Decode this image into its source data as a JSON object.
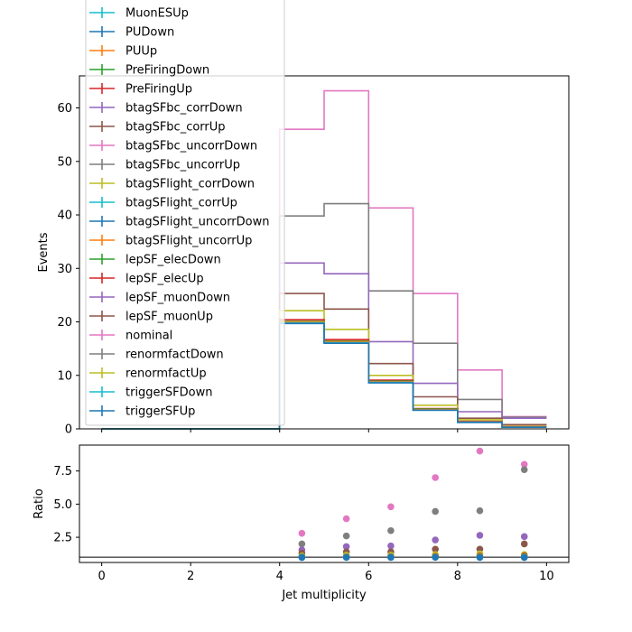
{
  "chart_data": [
    {
      "type": "line",
      "step": true,
      "xlabel": "",
      "ylabel": "Events",
      "xlim": [
        -0.5,
        10.5
      ],
      "ylim": [
        0,
        66
      ],
      "x_ticks": [
        0,
        2,
        4,
        6,
        8,
        10
      ],
      "y_ticks": [
        0,
        10,
        20,
        30,
        40,
        50,
        60
      ],
      "y_tick_labels": [
        "0",
        "10",
        "20",
        "30",
        "40",
        "50",
        "60"
      ],
      "bin_edges": [
        0,
        1,
        2,
        3,
        4,
        5,
        6,
        7,
        8,
        9,
        10
      ],
      "legend": {
        "placement": "upper left",
        "entries": [
          {
            "label": "MuonESUp",
            "color": "#17becf"
          },
          {
            "label": "PUDown",
            "color": "#1f77b4"
          },
          {
            "label": "PUUp",
            "color": "#ff7f0e"
          },
          {
            "label": "PreFiringDown",
            "color": "#2ca02c"
          },
          {
            "label": "PreFiringUp",
            "color": "#d62728"
          },
          {
            "label": "btagSFbc_corrDown",
            "color": "#9467bd"
          },
          {
            "label": "btagSFbc_corrUp",
            "color": "#8c564b"
          },
          {
            "label": "btagSFbc_uncorrDown",
            "color": "#e377c2"
          },
          {
            "label": "btagSFbc_uncorrUp",
            "color": "#7f7f7f"
          },
          {
            "label": "btagSFlight_corrDown",
            "color": "#bcbd22"
          },
          {
            "label": "btagSFlight_corrUp",
            "color": "#17becf"
          },
          {
            "label": "btagSFlight_uncorrDown",
            "color": "#1f77b4"
          },
          {
            "label": "btagSFlight_uncorrUp",
            "color": "#ff7f0e"
          },
          {
            "label": "lepSF_elecDown",
            "color": "#2ca02c"
          },
          {
            "label": "lepSF_elecUp",
            "color": "#d62728"
          },
          {
            "label": "lepSF_muonDown",
            "color": "#9467bd"
          },
          {
            "label": "lepSF_muonUp",
            "color": "#8c564b"
          },
          {
            "label": "nominal",
            "color": "#e377c2"
          },
          {
            "label": "renormfactDown",
            "color": "#7f7f7f"
          },
          {
            "label": "renormfactUp",
            "color": "#bcbd22"
          },
          {
            "label": "triggerSFDown",
            "color": "#17becf"
          },
          {
            "label": "triggerSFUp",
            "color": "#1f77b4"
          }
        ]
      },
      "series": [
        {
          "color": "#e377c2",
          "values": [
            0,
            0,
            0,
            0,
            56,
            63.2,
            41.3,
            25.3,
            11,
            2.3
          ]
        },
        {
          "color": "#7f7f7f",
          "values": [
            0,
            0,
            0,
            0,
            39.8,
            42.1,
            25.8,
            16,
            5.5,
            2.2
          ]
        },
        {
          "color": "#9467bd",
          "values": [
            0,
            0,
            0,
            0,
            31,
            29,
            16.3,
            8.5,
            3.2,
            2
          ]
        },
        {
          "color": "#8c564b",
          "values": [
            0,
            0,
            0,
            0,
            25.3,
            22.4,
            12.2,
            6,
            2,
            0.8
          ]
        },
        {
          "color": "#bcbd22",
          "values": [
            0,
            0,
            0,
            0,
            22.1,
            18.6,
            10,
            4.4,
            1.7,
            0.5
          ]
        },
        {
          "color": "#d62728",
          "values": [
            0,
            0,
            0,
            0,
            20.4,
            16.7,
            9.1,
            3.8,
            1.4,
            0.4
          ]
        },
        {
          "color": "#2ca02c",
          "values": [
            0,
            0,
            0,
            0,
            20.1,
            16.4,
            8.9,
            3.7,
            1.3,
            0.35
          ]
        },
        {
          "color": "#ff7f0e",
          "values": [
            0,
            0,
            0,
            0,
            20,
            16.3,
            8.8,
            3.6,
            1.3,
            0.35
          ]
        },
        {
          "color": "#17becf",
          "values": [
            0,
            0,
            0,
            0,
            19.8,
            16.1,
            8.7,
            3.5,
            1.25,
            0.3
          ]
        },
        {
          "color": "#1f77b4",
          "values": [
            0,
            0,
            0,
            0,
            19.7,
            16,
            8.6,
            3.5,
            1.2,
            0.3
          ]
        }
      ]
    },
    {
      "type": "scatter",
      "xlabel": "Jet multiplicity",
      "ylabel": "Ratio",
      "xlim": [
        -0.5,
        10.5
      ],
      "ylim": [
        0.6,
        9.45
      ],
      "x_ticks": [
        0,
        2,
        4,
        6,
        8,
        10
      ],
      "x_tick_labels": [
        "0",
        "2",
        "4",
        "6",
        "8",
        "10"
      ],
      "y_ticks": [
        2.5,
        5.0,
        7.5
      ],
      "y_tick_labels": [
        "2.5",
        "5.0",
        "7.5"
      ],
      "reference_line": 1.0,
      "x": [
        4.5,
        5.5,
        6.5,
        7.5,
        8.5,
        9.5
      ],
      "series": [
        {
          "color": "#e377c2",
          "values": [
            2.8,
            3.9,
            4.8,
            7.0,
            9.0,
            8.0
          ]
        },
        {
          "color": "#7f7f7f",
          "values": [
            2.0,
            2.6,
            3.0,
            4.45,
            4.5,
            7.6
          ]
        },
        {
          "color": "#9467bd",
          "values": [
            1.55,
            1.8,
            1.85,
            2.3,
            2.65,
            2.55
          ]
        },
        {
          "color": "#8c564b",
          "values": [
            1.3,
            1.4,
            1.4,
            1.6,
            1.6,
            2.0
          ]
        },
        {
          "color": "#bcbd22",
          "values": [
            1.1,
            1.15,
            1.15,
            1.2,
            1.25,
            1.2
          ]
        },
        {
          "color": "#d62728",
          "values": [
            1.03,
            1.03,
            1.04,
            1.06,
            1.08,
            1.1
          ]
        },
        {
          "color": "#2ca02c",
          "values": [
            1.02,
            1.02,
            1.02,
            1.03,
            1.04,
            1.05
          ]
        },
        {
          "color": "#ff7f0e",
          "values": [
            1.01,
            1.01,
            1.01,
            1.02,
            1.03,
            1.02
          ]
        },
        {
          "color": "#17becf",
          "values": [
            1.0,
            1.0,
            1.0,
            1.0,
            1.0,
            1.0
          ]
        },
        {
          "color": "#1f77b4",
          "values": [
            0.97,
            0.98,
            0.98,
            0.99,
            0.98,
            0.97
          ]
        }
      ]
    }
  ]
}
